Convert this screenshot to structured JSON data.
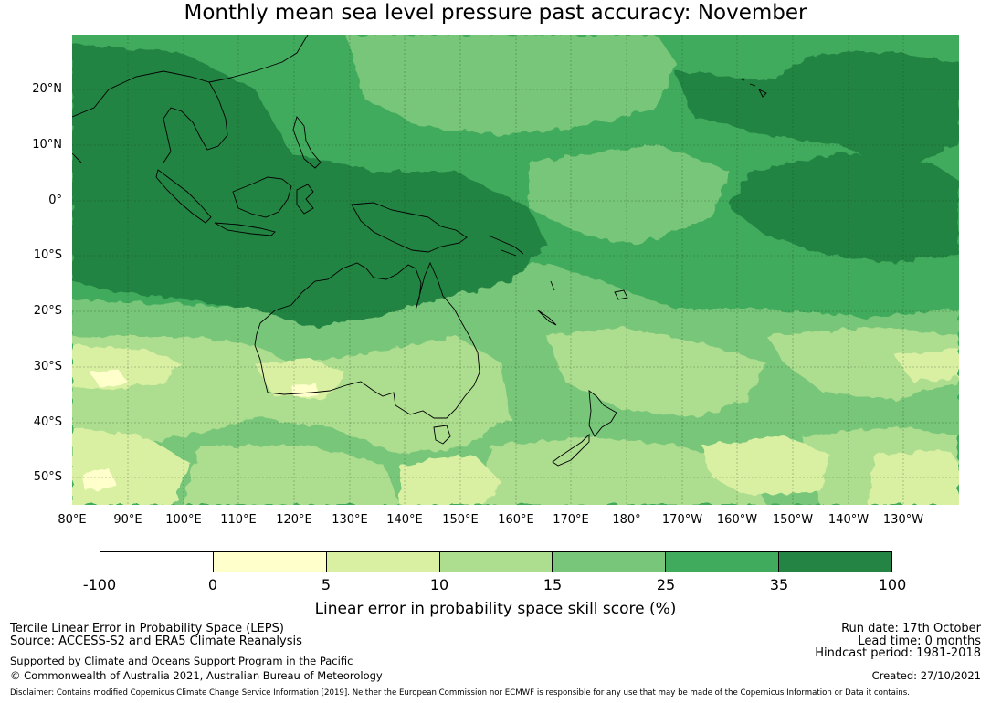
{
  "title": "Monthly mean sea level pressure past accuracy: November",
  "map": {
    "lat_labels": [
      "20°N",
      "10°N",
      "0°",
      "10°S",
      "20°S",
      "30°S",
      "40°S",
      "50°S"
    ],
    "lon_labels": [
      "80°E",
      "90°E",
      "100°E",
      "110°E",
      "120°E",
      "130°E",
      "140°E",
      "150°E",
      "160°E",
      "170°E",
      "180°",
      "170°W",
      "160°W",
      "150°W",
      "140°W",
      "130°W"
    ],
    "colors": {
      "land_outline": "#000000",
      "gridline": "#1a3d1a"
    }
  },
  "colorbar": {
    "ticks": [
      "-100",
      "0",
      "5",
      "10",
      "15",
      "25",
      "35",
      "100"
    ],
    "colors": [
      "#ffffff",
      "#ffffcc",
      "#d9f0a3",
      "#addd8e",
      "#78c679",
      "#41ab5d",
      "#238443"
    ],
    "label": "Linear error in probability space skill score (%)"
  },
  "footer": {
    "left_line1": "Tercile Linear Error in Probability Space (LEPS)",
    "left_line2": "Source: ACCESS-S2 and ERA5 Climate Reanalysis",
    "left_line3": "Supported by Climate and Oceans Support Program in the Pacific",
    "left_line4": "© Commonwealth of Australia 2021, Australian Bureau of Meteorology",
    "right_line1": "Run date: 17th October",
    "right_line2": "Lead time: 0 months",
    "right_line3": "Hindcast period: 1981-2018",
    "right_line4": "Created: 27/10/2021",
    "disclaimer": "Disclaimer: Contains modified Copernicus Climate Change Service Information [2019]. Neither the European Commission nor ECMWF is responsible for any use that may be made of the Copernicus Information or Data it contains."
  }
}
